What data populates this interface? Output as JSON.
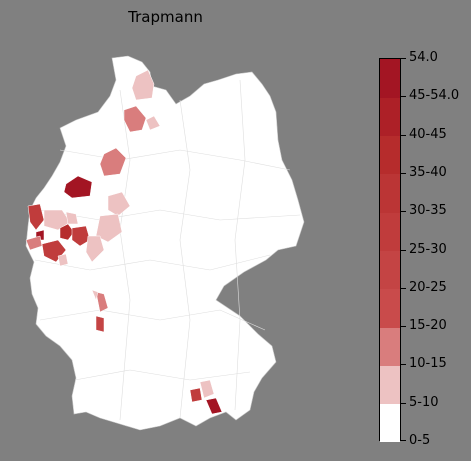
{
  "title": "Trapmann",
  "colorbar": {
    "labels": [
      "0-5",
      "5-10",
      "10-15",
      "15-20",
      "20-25",
      "25-30",
      "30-35",
      "35-40",
      "40-45",
      "45-54.0",
      "54.0"
    ],
    "colors": [
      "#ffffff",
      "#edc2c2",
      "#d97d7d",
      "#c94b4b",
      "#c44444",
      "#c03c3c",
      "#bb3535",
      "#b62c2c",
      "#ad2027",
      "#a31523"
    ]
  },
  "map": {
    "country": "Germany",
    "fill": "#ffffff",
    "background": "#808080",
    "highlighted_regions": [
      {
        "area": "Schleswig-Holstein north",
        "bin": "5-10"
      },
      {
        "area": "Hamburg area",
        "bin": "10-15"
      },
      {
        "area": "Emsland",
        "bin": "15-20"
      },
      {
        "area": "Münster",
        "bin": "45-54.0"
      },
      {
        "area": "Westphalia south",
        "bin": "5-10"
      },
      {
        "area": "Lower Rhine",
        "bin": "25-30"
      },
      {
        "area": "Ruhr",
        "bin": "5-10"
      },
      {
        "area": "Wuppertal",
        "bin": "35-40"
      },
      {
        "area": "Cologne",
        "bin": "25-30"
      },
      {
        "area": "Bonn",
        "bin": "5-10"
      },
      {
        "area": "Aachen",
        "bin": "10-15"
      },
      {
        "area": "Mannheim",
        "bin": "10-15"
      },
      {
        "area": "Karlsruhe",
        "bin": "20-25"
      },
      {
        "area": "Upper Bavaria",
        "bin": "5-10"
      },
      {
        "area": "Rosenheim",
        "bin": "45-54.0"
      },
      {
        "area": "Munich south",
        "bin": "25-30"
      }
    ]
  }
}
